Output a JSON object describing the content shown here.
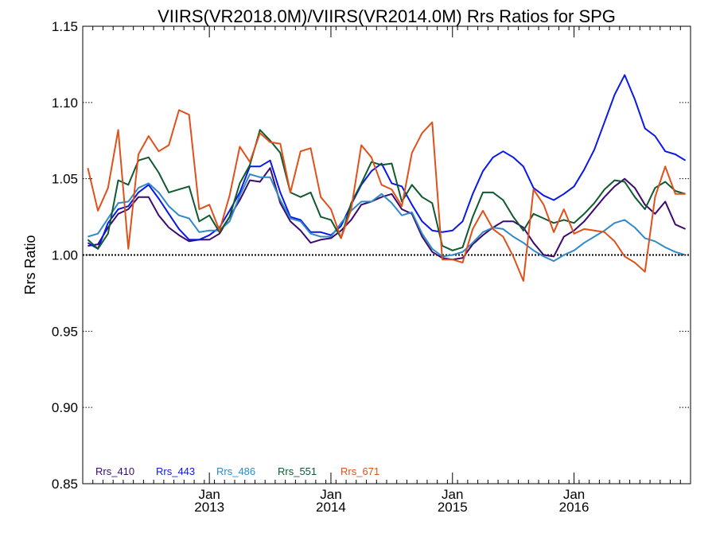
{
  "chart_data": {
    "type": "line",
    "title": "VIIRS(VR2018.0M)/VIIRS(VR2014.0M)  Rrs Ratios for SPG",
    "xlabel": "",
    "ylabel": "Rrs Ratio",
    "ylim": [
      0.85,
      1.15
    ],
    "yticks": [
      "0.85",
      "0.90",
      "0.95",
      "1.00",
      "1.05",
      "1.10",
      "1.15"
    ],
    "reference_line": 1.0,
    "x_unit": "month",
    "xlim": [
      "2012-01",
      "2016-12"
    ],
    "xticks": [
      {
        "month": "Jan",
        "year": "2013",
        "x": "2013-01"
      },
      {
        "month": "Jan",
        "year": "2014",
        "x": "2014-01"
      },
      {
        "month": "Jan",
        "year": "2015",
        "x": "2015-01"
      },
      {
        "month": "Jan",
        "year": "2016",
        "x": "2016-01"
      }
    ],
    "x": [
      "2012-01",
      "2012-02",
      "2012-03",
      "2012-04",
      "2012-05",
      "2012-06",
      "2012-07",
      "2012-08",
      "2012-09",
      "2012-10",
      "2012-11",
      "2012-12",
      "2013-01",
      "2013-02",
      "2013-03",
      "2013-04",
      "2013-05",
      "2013-06",
      "2013-07",
      "2013-08",
      "2013-09",
      "2013-10",
      "2013-11",
      "2013-12",
      "2014-01",
      "2014-02",
      "2014-03",
      "2014-04",
      "2014-05",
      "2014-06",
      "2014-07",
      "2014-08",
      "2014-09",
      "2014-10",
      "2014-11",
      "2014-12",
      "2015-01",
      "2015-02",
      "2015-03",
      "2015-04",
      "2015-05",
      "2015-06",
      "2015-07",
      "2015-08",
      "2015-09",
      "2015-10",
      "2015-11",
      "2015-12",
      "2016-01",
      "2016-02",
      "2016-03",
      "2016-04",
      "2016-05",
      "2016-06",
      "2016-07",
      "2016-08",
      "2016-09",
      "2016-10",
      "2016-11",
      "2016-12"
    ],
    "series": [
      {
        "name": "Rrs_410",
        "color": "#3d0a6e",
        "values": [
          1.006,
          1.007,
          1.018,
          1.027,
          1.03,
          1.038,
          1.038,
          1.026,
          1.018,
          1.013,
          1.009,
          1.01,
          1.01,
          1.014,
          1.025,
          1.036,
          1.049,
          1.048,
          1.057,
          1.034,
          1.022,
          1.016,
          1.008,
          1.01,
          1.011,
          1.016,
          1.023,
          1.033,
          1.035,
          1.038,
          1.04,
          1.03,
          1.027,
          1.012,
          1.002,
          0.998,
          0.997,
          0.998,
          1.007,
          1.013,
          1.018,
          1.022,
          1.022,
          1.018,
          1.008,
          1.0,
          0.999,
          1.012,
          1.016,
          1.022,
          1.03,
          1.038,
          1.045,
          1.05,
          1.044,
          1.033,
          1.027,
          1.035,
          1.02,
          1.017
        ]
      },
      {
        "name": "Rrs_443",
        "color": "#0a18e8",
        "values": [
          1.008,
          1.004,
          1.021,
          1.03,
          1.032,
          1.041,
          1.046,
          1.037,
          1.027,
          1.017,
          1.01,
          1.01,
          1.013,
          1.018,
          1.029,
          1.041,
          1.058,
          1.058,
          1.062,
          1.041,
          1.025,
          1.023,
          1.015,
          1.015,
          1.013,
          1.019,
          1.033,
          1.046,
          1.055,
          1.06,
          1.047,
          1.045,
          1.033,
          1.022,
          1.016,
          1.015,
          1.016,
          1.022,
          1.04,
          1.055,
          1.064,
          1.068,
          1.064,
          1.058,
          1.044,
          1.039,
          1.036,
          1.04,
          1.045,
          1.056,
          1.069,
          1.087,
          1.105,
          1.118,
          1.102,
          1.083,
          1.078,
          1.068,
          1.066,
          1.062
        ]
      },
      {
        "name": "Rrs_486",
        "color": "#3089c8",
        "values": [
          1.012,
          1.014,
          1.024,
          1.034,
          1.035,
          1.044,
          1.047,
          1.041,
          1.032,
          1.026,
          1.024,
          1.015,
          1.016,
          1.016,
          1.022,
          1.039,
          1.053,
          1.051,
          1.051,
          1.036,
          1.024,
          1.022,
          1.014,
          1.012,
          1.012,
          1.021,
          1.029,
          1.035,
          1.035,
          1.04,
          1.034,
          1.026,
          1.028,
          1.014,
          1.004,
          0.999,
          1.0,
          1.002,
          1.008,
          1.015,
          1.018,
          1.017,
          1.012,
          1.008,
          1.003,
          0.999,
          0.996,
          1.0,
          1.003,
          1.008,
          1.012,
          1.016,
          1.021,
          1.023,
          1.018,
          1.011,
          1.009,
          1.005,
          1.002,
          1.0
        ]
      },
      {
        "name": "Rrs_551",
        "color": "#0f5a2e",
        "values": [
          1.01,
          1.004,
          1.014,
          1.049,
          1.046,
          1.062,
          1.064,
          1.054,
          1.041,
          1.043,
          1.045,
          1.022,
          1.026,
          1.015,
          1.025,
          1.047,
          1.059,
          1.082,
          1.075,
          1.067,
          1.041,
          1.038,
          1.041,
          1.025,
          1.023,
          1.011,
          1.034,
          1.047,
          1.061,
          1.059,
          1.06,
          1.035,
          1.046,
          1.038,
          1.034,
          1.006,
          1.003,
          1.005,
          1.025,
          1.041,
          1.041,
          1.036,
          1.025,
          1.016,
          1.027,
          1.024,
          1.021,
          1.023,
          1.021,
          1.027,
          1.034,
          1.043,
          1.049,
          1.048,
          1.038,
          1.03,
          1.044,
          1.048,
          1.042,
          1.04
        ]
      },
      {
        "name": "Rrs_671",
        "color": "#e0501a",
        "values": [
          1.057,
          1.029,
          1.044,
          1.082,
          1.004,
          1.066,
          1.078,
          1.068,
          1.072,
          1.095,
          1.092,
          1.03,
          1.033,
          1.016,
          1.039,
          1.071,
          1.061,
          1.08,
          1.074,
          1.073,
          1.041,
          1.068,
          1.07,
          1.038,
          1.03,
          1.011,
          1.03,
          1.072,
          1.064,
          1.046,
          1.043,
          1.032,
          1.067,
          1.08,
          1.087,
          0.997,
          0.997,
          0.995,
          1.017,
          1.029,
          1.017,
          1.012,
          0.999,
          0.983,
          1.043,
          1.033,
          1.015,
          1.03,
          1.014,
          1.017,
          1.016,
          1.015,
          1.009,
          0.999,
          0.995,
          0.989,
          1.038,
          1.058,
          1.04,
          1.04
        ]
      }
    ]
  }
}
